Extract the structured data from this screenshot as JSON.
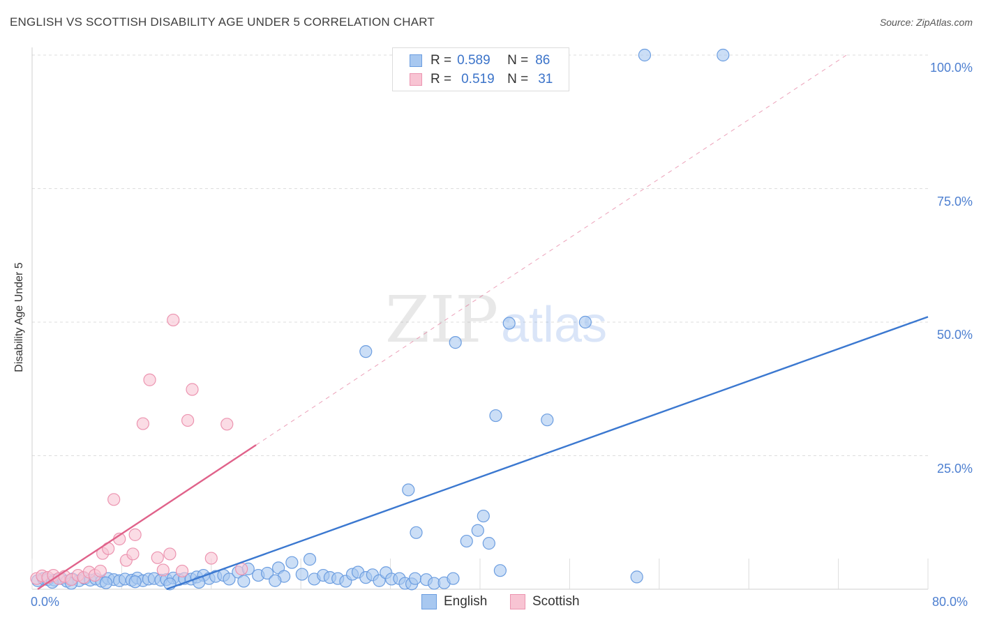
{
  "header": {
    "title": "ENGLISH VS SCOTTISH DISABILITY AGE UNDER 5 CORRELATION CHART",
    "source": "Source: ZipAtlas.com"
  },
  "watermark": {
    "zip": "ZIP",
    "atlas": "atlas"
  },
  "legend": {
    "english": {
      "r_label": "R =",
      "r_value": "0.589",
      "n_label": "N =",
      "n_value": "86"
    },
    "scottish": {
      "r_label": "R =",
      "r_value": "0.519",
      "n_label": "N =",
      "n_value": "31"
    }
  },
  "bottom_legend": {
    "english": "English",
    "scottish": "Scottish"
  },
  "colors": {
    "english_fill": "#a8c8f0",
    "english_stroke": "#6b9de0",
    "english_line": "#3b78d0",
    "scottish_fill": "#f8c4d3",
    "scottish_stroke": "#ec94b0",
    "scottish_line": "#e0628a",
    "tick_text": "#4d7fd0",
    "grid": "#dddddd"
  },
  "chart_data": {
    "type": "scatter",
    "title": "ENGLISH VS SCOTTISH DISABILITY AGE UNDER 5 CORRELATION CHART",
    "xlabel": "",
    "ylabel": "Disability Age Under 5",
    "xlim": [
      0,
      80
    ],
    "ylim": [
      0,
      100
    ],
    "x_tick_labels": [
      "0.0%",
      "80.0%"
    ],
    "y_ticks": [
      100,
      75,
      50,
      25
    ],
    "y_tick_labels": [
      "100.0%",
      "75.0%",
      "50.0%",
      "25.0%"
    ],
    "grid": true,
    "legend_position": "top-center",
    "series": [
      {
        "name": "English",
        "r": 0.589,
        "n": 86,
        "trend": {
          "x": [
            12.0,
            80.0
          ],
          "y": [
            0.0,
            51.0
          ]
        },
        "points": [
          [
            0.5,
            1.6
          ],
          [
            1.0,
            2.0
          ],
          [
            1.4,
            1.8
          ],
          [
            2.0,
            1.7
          ],
          [
            2.6,
            2.0
          ],
          [
            3.1,
            1.5
          ],
          [
            3.6,
            1.9
          ],
          [
            4.2,
            1.6
          ],
          [
            4.7,
            2.0
          ],
          [
            5.2,
            1.7
          ],
          [
            5.7,
            1.9
          ],
          [
            6.2,
            1.5
          ],
          [
            6.8,
            2.0
          ],
          [
            7.3,
            1.8
          ],
          [
            7.8,
            1.6
          ],
          [
            8.3,
            1.9
          ],
          [
            8.9,
            1.7
          ],
          [
            9.4,
            2.1
          ],
          [
            9.9,
            1.6
          ],
          [
            10.4,
            1.9
          ],
          [
            10.9,
            2.0
          ],
          [
            11.5,
            1.7
          ],
          [
            12.0,
            1.8
          ],
          [
            12.6,
            2.1
          ],
          [
            13.1,
            1.8
          ],
          [
            13.6,
            2.0
          ],
          [
            14.2,
            1.9
          ],
          [
            14.7,
            2.3
          ],
          [
            15.3,
            2.6
          ],
          [
            15.8,
            2.0
          ],
          [
            16.4,
            2.4
          ],
          [
            17.1,
            2.6
          ],
          [
            17.6,
            1.9
          ],
          [
            18.4,
            3.2
          ],
          [
            19.3,
            3.8
          ],
          [
            20.2,
            2.6
          ],
          [
            21.0,
            3.0
          ],
          [
            22.0,
            4.0
          ],
          [
            22.5,
            2.4
          ],
          [
            23.2,
            5.0
          ],
          [
            24.1,
            2.8
          ],
          [
            24.8,
            5.6
          ],
          [
            25.2,
            1.9
          ],
          [
            26.0,
            2.6
          ],
          [
            26.6,
            2.2
          ],
          [
            27.3,
            2.0
          ],
          [
            28.0,
            1.5
          ],
          [
            28.6,
            2.8
          ],
          [
            29.1,
            3.2
          ],
          [
            29.8,
            2.2
          ],
          [
            30.4,
            2.7
          ],
          [
            31.0,
            1.6
          ],
          [
            31.6,
            3.1
          ],
          [
            32.1,
            1.9
          ],
          [
            32.8,
            2.0
          ],
          [
            33.3,
            1.1
          ],
          [
            33.9,
            1.0
          ],
          [
            34.2,
            2.0
          ],
          [
            35.2,
            1.8
          ],
          [
            35.9,
            1.1
          ],
          [
            36.8,
            1.2
          ],
          [
            37.6,
            2.0
          ],
          [
            29.8,
            44.5
          ],
          [
            33.6,
            18.6
          ],
          [
            34.3,
            10.6
          ],
          [
            37.8,
            46.2
          ],
          [
            38.8,
            9.0
          ],
          [
            39.8,
            11.0
          ],
          [
            40.3,
            13.7
          ],
          [
            40.8,
            8.6
          ],
          [
            41.4,
            32.5
          ],
          [
            41.8,
            3.5
          ],
          [
            42.6,
            49.8
          ],
          [
            46.0,
            31.7
          ],
          [
            49.4,
            50.0
          ],
          [
            54.0,
            2.3
          ],
          [
            54.7,
            100
          ],
          [
            61.7,
            100
          ],
          [
            1.8,
            1.3
          ],
          [
            3.5,
            1.1
          ],
          [
            6.6,
            1.2
          ],
          [
            9.2,
            1.4
          ],
          [
            12.3,
            1.0
          ],
          [
            14.9,
            1.3
          ],
          [
            18.9,
            1.5
          ],
          [
            21.7,
            1.6
          ]
        ]
      },
      {
        "name": "Scottish",
        "r": 0.519,
        "n": 31,
        "trend": {
          "x": [
            0.5,
            20.0
          ],
          "y": [
            0.0,
            27.0
          ]
        },
        "points": [
          [
            0.4,
            2.0
          ],
          [
            0.9,
            2.5
          ],
          [
            1.4,
            2.2
          ],
          [
            1.9,
            2.6
          ],
          [
            2.4,
            2.0
          ],
          [
            2.9,
            2.4
          ],
          [
            3.5,
            1.8
          ],
          [
            4.1,
            2.6
          ],
          [
            4.6,
            2.2
          ],
          [
            5.1,
            3.2
          ],
          [
            5.6,
            2.6
          ],
          [
            6.1,
            3.4
          ],
          [
            6.3,
            6.7
          ],
          [
            6.8,
            7.6
          ],
          [
            7.3,
            16.8
          ],
          [
            7.8,
            9.4
          ],
          [
            8.4,
            5.4
          ],
          [
            9.0,
            6.6
          ],
          [
            9.2,
            10.2
          ],
          [
            9.9,
            31.0
          ],
          [
            10.5,
            39.2
          ],
          [
            11.2,
            5.9
          ],
          [
            11.7,
            3.6
          ],
          [
            12.3,
            6.6
          ],
          [
            12.6,
            50.4
          ],
          [
            13.4,
            3.4
          ],
          [
            13.9,
            31.6
          ],
          [
            14.3,
            37.4
          ],
          [
            16.0,
            5.8
          ],
          [
            17.4,
            30.9
          ],
          [
            18.7,
            3.8
          ]
        ]
      }
    ]
  }
}
